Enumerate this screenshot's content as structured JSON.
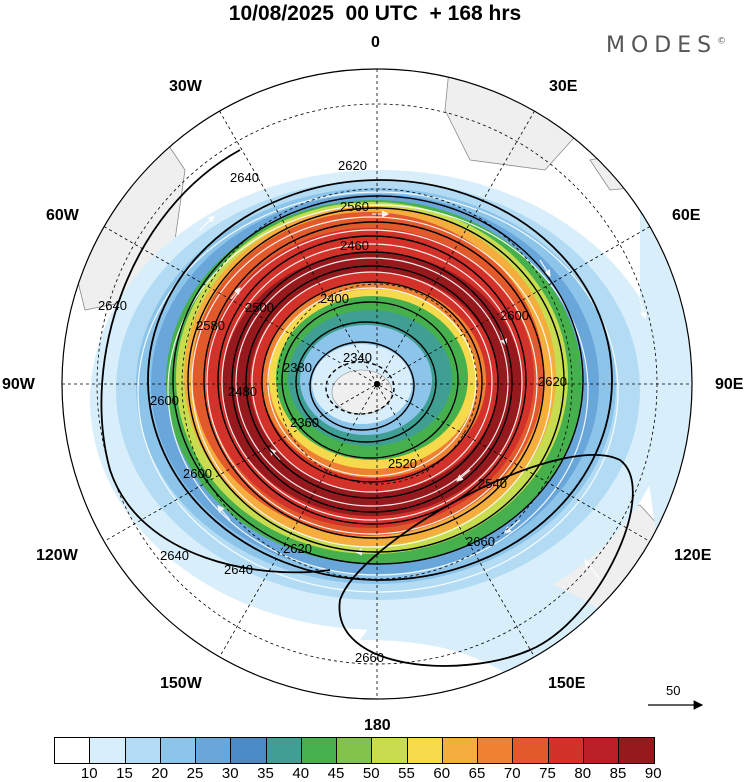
{
  "header": {
    "title": "10/08/2025  00 UTC  + 168 hrs",
    "brand": "MODES",
    "brand_mark": "©"
  },
  "map": {
    "projection": "polar stereographic (south pole)",
    "longitude_labels": {
      "top": "0",
      "top_left": "30W",
      "top_right": "30E",
      "upper_left": "60W",
      "upper_right": "60E",
      "left": "90W",
      "right": "90E",
      "lower_left": "120W",
      "lower_right": "120E",
      "bottom_left": "150W",
      "bottom_right": "150E",
      "bottom": "180"
    },
    "contour_labels": [
      "2340",
      "2360",
      "2380",
      "2400",
      "2460",
      "2480",
      "2500",
      "2520",
      "2540",
      "2560",
      "2580",
      "2600",
      "2620",
      "2640",
      "2660"
    ],
    "wind_reference_vector": "50"
  },
  "colorbar": {
    "ticks": [
      "10",
      "15",
      "20",
      "25",
      "30",
      "35",
      "40",
      "45",
      "50",
      "55",
      "60",
      "65",
      "70",
      "75",
      "80",
      "85",
      "90"
    ],
    "colors": [
      "#ffffff",
      "#d8eefa",
      "#b3dcf4",
      "#8cc4ea",
      "#69a6da",
      "#4a8bc6",
      "#3f9f93",
      "#46b04d",
      "#82c34b",
      "#c8dc50",
      "#f6da4b",
      "#f5ae3e",
      "#ee8232",
      "#e25a2c",
      "#d2322a",
      "#b81f26",
      "#961a1d"
    ]
  }
}
